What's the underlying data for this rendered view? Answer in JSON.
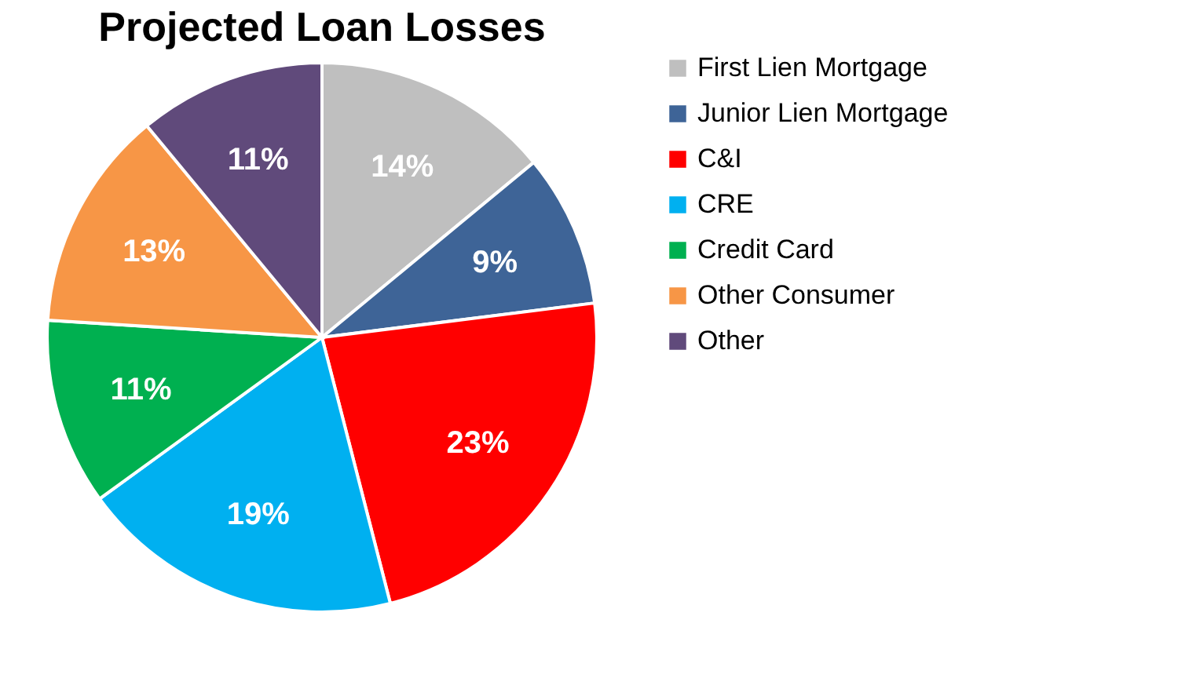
{
  "chart_data": {
    "type": "pie",
    "title": "Projected Loan Losses",
    "categories": [
      "First Lien Mortgage",
      "Junior Lien Mortgage",
      "C&I",
      "CRE",
      "Credit Card",
      "Other Consumer",
      "Other"
    ],
    "values": [
      14,
      9,
      23,
      19,
      11,
      13,
      11
    ],
    "value_labels": [
      "14%",
      "9%",
      "23%",
      "19%",
      "11%",
      "13%",
      "11%"
    ],
    "colors": [
      "#bfbfbf",
      "#3e6497",
      "#ff0000",
      "#00b0f0",
      "#00b050",
      "#f79646",
      "#604a7b"
    ],
    "legend": "right"
  }
}
